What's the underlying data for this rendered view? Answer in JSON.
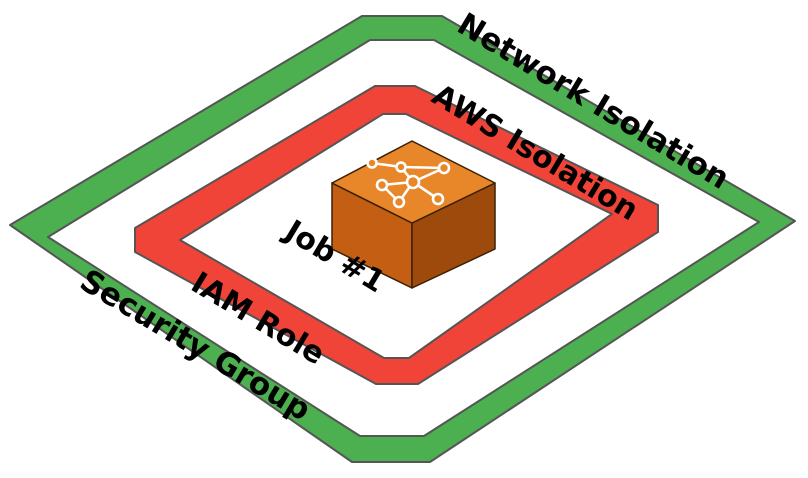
{
  "diagram": {
    "outer_layer": {
      "label_top": "Network Isolation",
      "label_bottom": "Security Group"
    },
    "inner_layer": {
      "label_top": "AWS Isolation",
      "label_bottom": "IAM Role"
    },
    "job": {
      "label": "Job #1",
      "icon": "network-graph-icon"
    }
  },
  "colors": {
    "outer": "#4caf50",
    "inner": "#f04438",
    "outline": "#555555",
    "cube_top": "#e8862a",
    "cube_left": "#c45e12",
    "cube_right": "#9e4a0c",
    "icon": "#ffffff",
    "background": "#ffffff"
  }
}
